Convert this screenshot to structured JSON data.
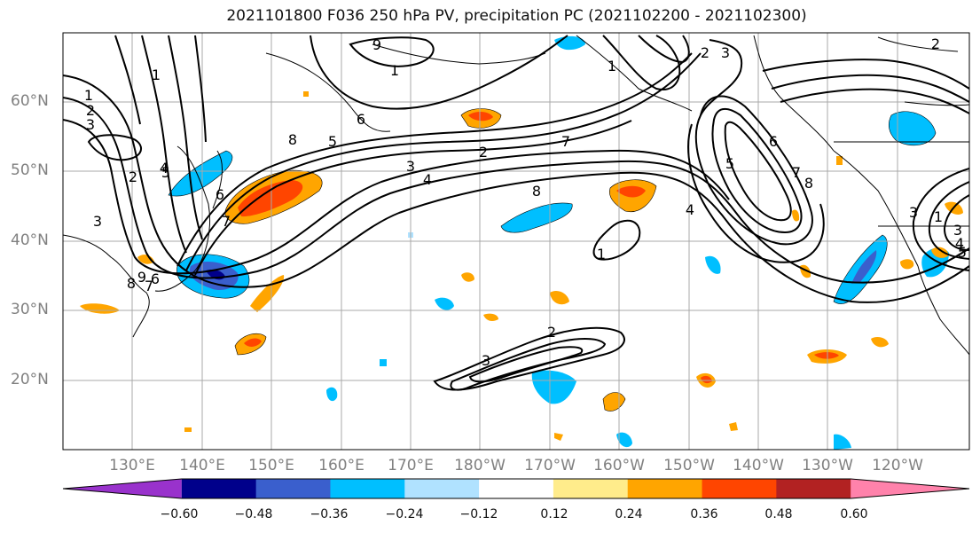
{
  "title": "2021101800 F036 250 hPa PV, precipitation PC (2021102200 - 2021102300)",
  "lat_labels": [
    "60°N",
    "50°N",
    "40°N",
    "30°N",
    "20°N"
  ],
  "lon_labels": [
    "130°E",
    "140°E",
    "150°E",
    "160°E",
    "170°E",
    "180°W",
    "170°W",
    "160°W",
    "150°W",
    "140°W",
    "130°W",
    "120°W"
  ],
  "colorbar": {
    "ticks": [
      "−0.60",
      "−0.48",
      "−0.36",
      "−0.24",
      "−0.12",
      "0.12",
      "0.24",
      "0.36",
      "0.48",
      "0.60"
    ],
    "colors": [
      "#9932cc",
      "#00008b",
      "#3a5fcd",
      "#00bfff",
      "#b0e2ff",
      "#ffffff",
      "#ffec8b",
      "#ffa500",
      "#ff4500",
      "#b22222",
      "#ff82ab"
    ]
  },
  "contour_labels": [
    "1",
    "2",
    "3",
    "1",
    "2",
    "3",
    "4",
    "5",
    "6",
    "7",
    "8",
    "9",
    "1",
    "2",
    "3",
    "4",
    "5",
    "6",
    "7",
    "8",
    "1",
    "2",
    "3",
    "4",
    "5",
    "6",
    "7",
    "8",
    "2",
    "3",
    "1",
    "2",
    "3",
    "1",
    "3",
    "4",
    "5",
    "6",
    "7",
    "8",
    "9"
  ]
}
